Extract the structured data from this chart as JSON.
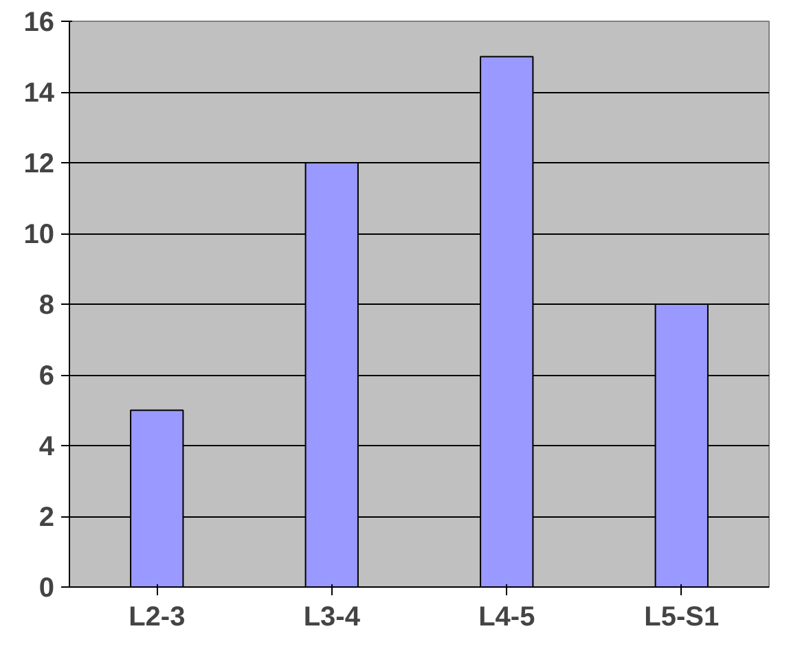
{
  "chart_data": {
    "type": "bar",
    "categories": [
      "L2-3",
      "L3-4",
      "L4-5",
      "L5-S1"
    ],
    "values": [
      5,
      12,
      15,
      8
    ],
    "color": "#9999ff",
    "ylim": [
      0,
      16
    ],
    "yticks": [
      0,
      2,
      4,
      6,
      8,
      10,
      12,
      14,
      16
    ],
    "grid": "y"
  }
}
